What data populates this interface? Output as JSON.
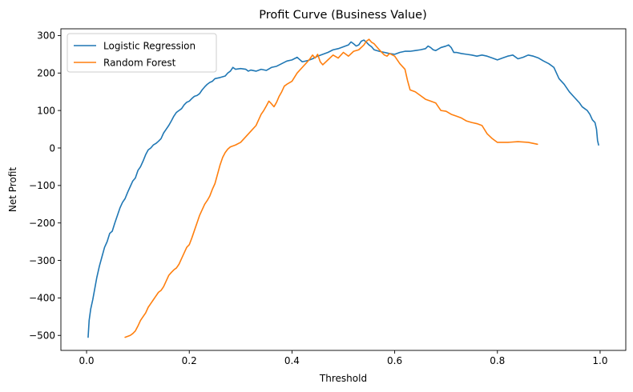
{
  "chart_data": {
    "type": "line",
    "title": "Profit Curve (Business Value)",
    "xlabel": "Threshold",
    "ylabel": "Net Profit",
    "xlim": [
      -0.05,
      1.05
    ],
    "ylim": [
      -540,
      318
    ],
    "xticks": [
      0.0,
      0.2,
      0.4,
      0.6,
      0.8,
      1.0
    ],
    "xtick_labels": [
      "0.0",
      "0.2",
      "0.4",
      "0.6",
      "0.8",
      "1.0"
    ],
    "yticks": [
      -500,
      -400,
      -300,
      -200,
      -100,
      0,
      100,
      200,
      300
    ],
    "ytick_labels": [
      "−500",
      "−400",
      "−300",
      "−200",
      "−100",
      "0",
      "100",
      "200",
      "300"
    ],
    "grid": false,
    "legend_position": "upper-left",
    "series": [
      {
        "name": "Logistic Regression",
        "color": "#1f77b4",
        "points": [
          [
            0.003,
            -505
          ],
          [
            0.005,
            -460
          ],
          [
            0.008,
            -430
          ],
          [
            0.012,
            -405
          ],
          [
            0.016,
            -375
          ],
          [
            0.02,
            -345
          ],
          [
            0.025,
            -315
          ],
          [
            0.03,
            -290
          ],
          [
            0.035,
            -265
          ],
          [
            0.04,
            -250
          ],
          [
            0.045,
            -228
          ],
          [
            0.05,
            -222
          ],
          [
            0.055,
            -200
          ],
          [
            0.06,
            -180
          ],
          [
            0.065,
            -160
          ],
          [
            0.07,
            -145
          ],
          [
            0.075,
            -135
          ],
          [
            0.08,
            -118
          ],
          [
            0.085,
            -103
          ],
          [
            0.09,
            -88
          ],
          [
            0.095,
            -80
          ],
          [
            0.1,
            -60
          ],
          [
            0.105,
            -50
          ],
          [
            0.11,
            -35
          ],
          [
            0.115,
            -18
          ],
          [
            0.12,
            -5
          ],
          [
            0.125,
            0
          ],
          [
            0.13,
            8
          ],
          [
            0.135,
            12
          ],
          [
            0.14,
            18
          ],
          [
            0.145,
            25
          ],
          [
            0.15,
            40
          ],
          [
            0.155,
            50
          ],
          [
            0.16,
            60
          ],
          [
            0.165,
            72
          ],
          [
            0.17,
            85
          ],
          [
            0.175,
            95
          ],
          [
            0.18,
            100
          ],
          [
            0.185,
            105
          ],
          [
            0.19,
            115
          ],
          [
            0.195,
            122
          ],
          [
            0.2,
            125
          ],
          [
            0.205,
            132
          ],
          [
            0.21,
            138
          ],
          [
            0.215,
            140
          ],
          [
            0.22,
            145
          ],
          [
            0.225,
            155
          ],
          [
            0.23,
            163
          ],
          [
            0.235,
            170
          ],
          [
            0.24,
            175
          ],
          [
            0.245,
            178
          ],
          [
            0.25,
            185
          ],
          [
            0.26,
            188
          ],
          [
            0.27,
            192
          ],
          [
            0.275,
            200
          ],
          [
            0.28,
            205
          ],
          [
            0.285,
            215
          ],
          [
            0.29,
            210
          ],
          [
            0.3,
            212
          ],
          [
            0.31,
            210
          ],
          [
            0.315,
            205
          ],
          [
            0.32,
            208
          ],
          [
            0.33,
            205
          ],
          [
            0.34,
            210
          ],
          [
            0.35,
            207
          ],
          [
            0.36,
            215
          ],
          [
            0.37,
            218
          ],
          [
            0.38,
            225
          ],
          [
            0.39,
            232
          ],
          [
            0.4,
            235
          ],
          [
            0.41,
            242
          ],
          [
            0.415,
            236
          ],
          [
            0.42,
            230
          ],
          [
            0.43,
            233
          ],
          [
            0.44,
            238
          ],
          [
            0.45,
            245
          ],
          [
            0.46,
            250
          ],
          [
            0.47,
            255
          ],
          [
            0.48,
            262
          ],
          [
            0.49,
            265
          ],
          [
            0.5,
            270
          ],
          [
            0.51,
            275
          ],
          [
            0.515,
            283
          ],
          [
            0.52,
            278
          ],
          [
            0.525,
            272
          ],
          [
            0.53,
            275
          ],
          [
            0.535,
            285
          ],
          [
            0.54,
            288
          ],
          [
            0.545,
            282
          ],
          [
            0.55,
            275
          ],
          [
            0.555,
            270
          ],
          [
            0.56,
            262
          ],
          [
            0.57,
            258
          ],
          [
            0.58,
            255
          ],
          [
            0.59,
            252
          ],
          [
            0.6,
            250
          ],
          [
            0.61,
            255
          ],
          [
            0.62,
            258
          ],
          [
            0.63,
            258
          ],
          [
            0.64,
            260
          ],
          [
            0.65,
            262
          ],
          [
            0.66,
            265
          ],
          [
            0.665,
            272
          ],
          [
            0.67,
            268
          ],
          [
            0.675,
            262
          ],
          [
            0.68,
            260
          ],
          [
            0.69,
            268
          ],
          [
            0.7,
            272
          ],
          [
            0.705,
            275
          ],
          [
            0.71,
            268
          ],
          [
            0.715,
            255
          ],
          [
            0.72,
            255
          ],
          [
            0.73,
            252
          ],
          [
            0.74,
            250
          ],
          [
            0.75,
            248
          ],
          [
            0.76,
            245
          ],
          [
            0.77,
            248
          ],
          [
            0.78,
            245
          ],
          [
            0.79,
            240
          ],
          [
            0.8,
            235
          ],
          [
            0.81,
            240
          ],
          [
            0.82,
            245
          ],
          [
            0.83,
            248
          ],
          [
            0.84,
            238
          ],
          [
            0.85,
            242
          ],
          [
            0.86,
            248
          ],
          [
            0.87,
            245
          ],
          [
            0.88,
            240
          ],
          [
            0.89,
            232
          ],
          [
            0.9,
            225
          ],
          [
            0.91,
            215
          ],
          [
            0.915,
            200
          ],
          [
            0.92,
            185
          ],
          [
            0.93,
            170
          ],
          [
            0.94,
            150
          ],
          [
            0.95,
            135
          ],
          [
            0.96,
            120
          ],
          [
            0.965,
            110
          ],
          [
            0.97,
            105
          ],
          [
            0.975,
            100
          ],
          [
            0.98,
            90
          ],
          [
            0.985,
            75
          ],
          [
            0.99,
            68
          ],
          [
            0.993,
            50
          ],
          [
            0.995,
            20
          ],
          [
            0.997,
            8
          ]
        ]
      },
      {
        "name": "Random Forest",
        "color": "#ff7f0e",
        "points": [
          [
            0.075,
            -505
          ],
          [
            0.085,
            -500
          ],
          [
            0.09,
            -495
          ],
          [
            0.095,
            -488
          ],
          [
            0.1,
            -475
          ],
          [
            0.105,
            -460
          ],
          [
            0.11,
            -450
          ],
          [
            0.115,
            -440
          ],
          [
            0.12,
            -425
          ],
          [
            0.125,
            -415
          ],
          [
            0.13,
            -405
          ],
          [
            0.135,
            -395
          ],
          [
            0.14,
            -385
          ],
          [
            0.145,
            -380
          ],
          [
            0.15,
            -370
          ],
          [
            0.155,
            -355
          ],
          [
            0.16,
            -340
          ],
          [
            0.165,
            -332
          ],
          [
            0.17,
            -325
          ],
          [
            0.175,
            -320
          ],
          [
            0.18,
            -310
          ],
          [
            0.185,
            -295
          ],
          [
            0.19,
            -280
          ],
          [
            0.195,
            -265
          ],
          [
            0.2,
            -258
          ],
          [
            0.205,
            -240
          ],
          [
            0.21,
            -220
          ],
          [
            0.215,
            -200
          ],
          [
            0.22,
            -180
          ],
          [
            0.225,
            -165
          ],
          [
            0.23,
            -150
          ],
          [
            0.235,
            -140
          ],
          [
            0.24,
            -128
          ],
          [
            0.245,
            -110
          ],
          [
            0.25,
            -95
          ],
          [
            0.255,
            -70
          ],
          [
            0.26,
            -45
          ],
          [
            0.265,
            -25
          ],
          [
            0.27,
            -12
          ],
          [
            0.275,
            -3
          ],
          [
            0.28,
            3
          ],
          [
            0.29,
            8
          ],
          [
            0.3,
            15
          ],
          [
            0.31,
            30
          ],
          [
            0.32,
            45
          ],
          [
            0.33,
            60
          ],
          [
            0.335,
            75
          ],
          [
            0.34,
            90
          ],
          [
            0.345,
            100
          ],
          [
            0.35,
            112
          ],
          [
            0.355,
            125
          ],
          [
            0.36,
            118
          ],
          [
            0.365,
            110
          ],
          [
            0.37,
            122
          ],
          [
            0.375,
            138
          ],
          [
            0.38,
            150
          ],
          [
            0.385,
            165
          ],
          [
            0.39,
            170
          ],
          [
            0.4,
            178
          ],
          [
            0.41,
            200
          ],
          [
            0.42,
            215
          ],
          [
            0.43,
            230
          ],
          [
            0.435,
            238
          ],
          [
            0.44,
            248
          ],
          [
            0.445,
            240
          ],
          [
            0.45,
            250
          ],
          [
            0.455,
            230
          ],
          [
            0.46,
            222
          ],
          [
            0.47,
            235
          ],
          [
            0.48,
            248
          ],
          [
            0.49,
            240
          ],
          [
            0.5,
            255
          ],
          [
            0.51,
            245
          ],
          [
            0.52,
            258
          ],
          [
            0.53,
            262
          ],
          [
            0.54,
            275
          ],
          [
            0.545,
            285
          ],
          [
            0.55,
            290
          ],
          [
            0.555,
            282
          ],
          [
            0.56,
            278
          ],
          [
            0.565,
            270
          ],
          [
            0.57,
            262
          ],
          [
            0.575,
            255
          ],
          [
            0.58,
            248
          ],
          [
            0.585,
            245
          ],
          [
            0.59,
            252
          ],
          [
            0.6,
            245
          ],
          [
            0.61,
            225
          ],
          [
            0.62,
            210
          ],
          [
            0.625,
            180
          ],
          [
            0.63,
            155
          ],
          [
            0.64,
            150
          ],
          [
            0.65,
            140
          ],
          [
            0.66,
            130
          ],
          [
            0.67,
            125
          ],
          [
            0.68,
            120
          ],
          [
            0.69,
            100
          ],
          [
            0.7,
            98
          ],
          [
            0.71,
            90
          ],
          [
            0.72,
            85
          ],
          [
            0.73,
            80
          ],
          [
            0.74,
            72
          ],
          [
            0.75,
            68
          ],
          [
            0.76,
            65
          ],
          [
            0.77,
            60
          ],
          [
            0.78,
            38
          ],
          [
            0.79,
            25
          ],
          [
            0.8,
            15
          ],
          [
            0.82,
            15
          ],
          [
            0.84,
            17
          ],
          [
            0.86,
            15
          ],
          [
            0.878,
            10
          ]
        ]
      }
    ]
  }
}
